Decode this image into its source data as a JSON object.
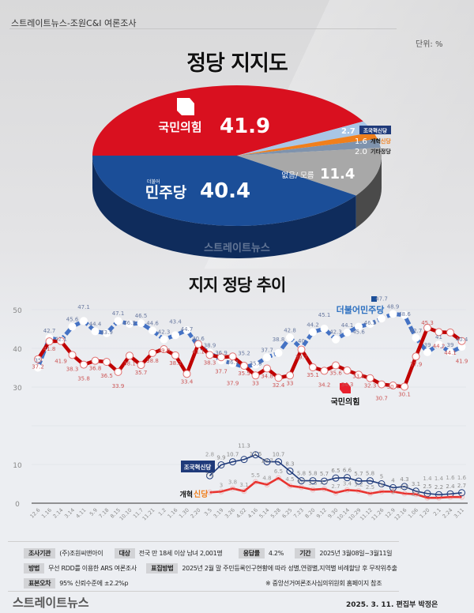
{
  "header": {
    "source": "스트레이트뉴스-조원C&I 여론조사",
    "unit": "단위: %",
    "title": "정당 지지도",
    "trend_title": "지지 정당 추이"
  },
  "pie": {
    "type": "pie",
    "slices": [
      {
        "name": "국민의힘",
        "value": 41.9,
        "label": "41.9",
        "color": "#d9101f",
        "side": "#a00d18"
      },
      {
        "name": "조국혁신당",
        "value": 2.7,
        "label": "2.7",
        "color": "#a9c6e6",
        "side": "#7f9cbd"
      },
      {
        "name": "개혁신당",
        "value": 1.6,
        "label": "1.6",
        "color": "#f07f1c",
        "side": "#b55a10"
      },
      {
        "name": "기타정당",
        "value": 2.0,
        "label": "2.0",
        "color": "#7f93ad",
        "side": "#5b6b80"
      },
      {
        "name": "없음/ 모름",
        "value": 11.4,
        "label": "11.4",
        "color": "#a8a8a8",
        "side": "#4a4a4a"
      },
      {
        "name": "민주당",
        "value": 40.4,
        "label": "40.4",
        "color": "#1b4e98",
        "side": "#0f2c5c"
      }
    ],
    "minjoo_small": "더불어",
    "watermark": "스트레이트뉴스"
  },
  "chart_data": {
    "type": "line",
    "ylim": [
      0,
      50
    ],
    "yticks": [
      0,
      10,
      30,
      40,
      50
    ],
    "grid": true,
    "categories": [
      "12.6",
      "1.16",
      "2.14",
      "3.14",
      "4.11",
      "5.9",
      "7.18",
      "8.15",
      "10.10",
      "11.7",
      "11.21",
      "1.2",
      "1.16",
      "1.30",
      "2.20",
      "3.5",
      "3.19",
      "3.26",
      "4.02",
      "4.16",
      "5.14",
      "5.28",
      "6.25",
      "7.23",
      "8.20",
      "9.12",
      "9.30",
      "10.14",
      "10.29",
      "11.12",
      "11.26",
      "12.9",
      "12.16",
      "1.06",
      "1.20",
      "2.1",
      "2.24",
      "3.11"
    ],
    "series": [
      {
        "name": "더불어민주당",
        "color": "#4472c4",
        "values": [
          35,
          42.7,
          42.1,
          45.6,
          47.1,
          44.4,
          43.9,
          47.1,
          46.3,
          46.5,
          44.6,
          42.3,
          43.4,
          44.7,
          40.6,
          38.9,
          36.9,
          36.1,
          35.2,
          35.8,
          37.7,
          38.8,
          42.8,
          40.0,
          44.2,
          45.1,
          42.3,
          44.1,
          45.6,
          46.3,
          47.7,
          48.9,
          48.6,
          42.7,
          39.0,
          41.0,
          39.0,
          40.4
        ]
      },
      {
        "name": "국민의힘",
        "color": "#c00000",
        "values": [
          37.2,
          41.8,
          41.9,
          38.3,
          35.8,
          36.8,
          36.5,
          33.9,
          38.1,
          35.7,
          38.8,
          39.8,
          38.2,
          33.4,
          41.1,
          38.3,
          37.7,
          37.9,
          35.5,
          33.0,
          34.8,
          32.4,
          33.0,
          39.7,
          35.1,
          34.2,
          35.6,
          34.3,
          33.2,
          32.3,
          30.7,
          30.4,
          30.1,
          37.9,
          45.3,
          44.2,
          44.1,
          41.9
        ]
      },
      {
        "name": "조국혁신당",
        "color": "#1f3a7a",
        "values": [
          null,
          null,
          null,
          null,
          null,
          null,
          null,
          null,
          null,
          null,
          null,
          null,
          null,
          null,
          null,
          7.1,
          9.9,
          10.7,
          11.3,
          12.5,
          10.7,
          10.7,
          8.3,
          5.8,
          5.8,
          5.7,
          6.5,
          6.6,
          5.7,
          5.8,
          5,
          4,
          4.3,
          3.1,
          2.5,
          2.2,
          2.4,
          2.7
        ]
      },
      {
        "name": "개혁신당",
        "color": "#e8332f",
        "values": [
          null,
          null,
          null,
          null,
          null,
          null,
          null,
          null,
          null,
          null,
          null,
          null,
          null,
          null,
          null,
          2.8,
          3,
          3.8,
          3.1,
          5.5,
          4.8,
          6.5,
          4.5,
          4.1,
          3.5,
          3.7,
          2.7,
          3.4,
          3.2,
          2.5,
          3,
          3,
          2.5,
          2.3,
          1.4,
          1.4,
          1.6,
          1.6
        ]
      }
    ]
  },
  "footer": {
    "rows": [
      [
        {
          "tag": "조사기관",
          "text": "(주)조원씨앤아이"
        },
        {
          "tag": "대상",
          "text": "전국 만 18세 이상 남녀 2,001명"
        },
        {
          "tag": "응답률",
          "text": "4.2%"
        },
        {
          "tag": "기간",
          "text": "2025년 3월08일~3월11일"
        }
      ],
      [
        {
          "tag": "방법",
          "text": "무선 RDD를 이용한 ARS 여론조사"
        },
        {
          "tag": "표집방법",
          "text": "2025년 2월 말 주민등록인구현황에 따라 성별,연령별,지역별 비례할당 후 무작위추출"
        }
      ],
      [
        {
          "tag": "표본오차",
          "text": "95% 신뢰수준에 ±2.2%p"
        }
      ]
    ],
    "note": "※ 중앙선거여론조사심의위원회 홈페이지 참조",
    "logo": "스트레이트뉴스",
    "credit": "2025. 3. 11. 편집부 박정은"
  }
}
